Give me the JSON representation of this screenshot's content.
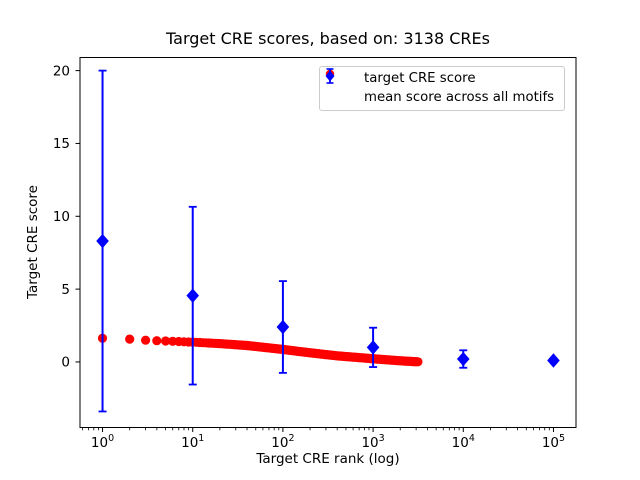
{
  "chart_data": {
    "type": "scatter",
    "title": "Target CRE scores, based on: 3138 CREs",
    "xlabel": "Target CRE rank (log)",
    "ylabel": "Target CRE score",
    "n_cres_in_title": 3138,
    "x_scale": "log",
    "xlim_log10": [
      -0.25,
      5.25
    ],
    "ylim": [
      -4.5,
      20.9
    ],
    "x_tick_exponents": [
      0,
      1,
      2,
      3,
      4,
      5
    ],
    "y_ticks": [
      0,
      5,
      10,
      15,
      20
    ],
    "grid": false,
    "series": [
      {
        "name": "target CRE score",
        "plot_type": "dense-scatter",
        "marker": "circle",
        "color": "#ff0000",
        "rank_range": [
          1,
          3138
        ],
        "points_log10rank_score": [
          [
            0.0,
            1.63
          ],
          [
            0.301,
            1.57
          ],
          [
            0.477,
            1.49
          ],
          [
            0.602,
            1.46
          ],
          [
            0.778,
            1.42
          ],
          [
            1.0,
            1.36
          ],
          [
            1.301,
            1.26
          ],
          [
            1.602,
            1.13
          ],
          [
            2.0,
            0.86
          ],
          [
            2.301,
            0.63
          ],
          [
            2.602,
            0.42
          ],
          [
            2.845,
            0.3
          ],
          [
            3.0,
            0.22
          ],
          [
            3.301,
            0.08
          ],
          [
            3.497,
            0.01
          ]
        ]
      },
      {
        "name": "mean score across all motifs",
        "plot_type": "errorbar",
        "marker": "diamond",
        "color": "#0000ff",
        "points": [
          {
            "rank": 1,
            "mean": 8.3,
            "err": 11.7
          },
          {
            "rank": 10,
            "mean": 4.55,
            "err": 6.1
          },
          {
            "rank": 100,
            "mean": 2.4,
            "err": 3.15
          },
          {
            "rank": 1000,
            "mean": 1.0,
            "err": 1.35
          },
          {
            "rank": 10000,
            "mean": 0.2,
            "err": 0.6
          },
          {
            "rank": 100000,
            "mean": 0.1,
            "err": 0.12
          }
        ]
      }
    ],
    "legend": {
      "position": "upper right",
      "items": [
        {
          "label": "target CRE score",
          "marker": "red-circle"
        },
        {
          "label": "mean score across all motifs",
          "marker": "blue-diamond-errorbar"
        }
      ]
    }
  },
  "colors": {
    "red": "#ff0000",
    "blue": "#0000ff",
    "axis": "#000000",
    "legend_border": "#cccccc",
    "background": "#ffffff"
  }
}
